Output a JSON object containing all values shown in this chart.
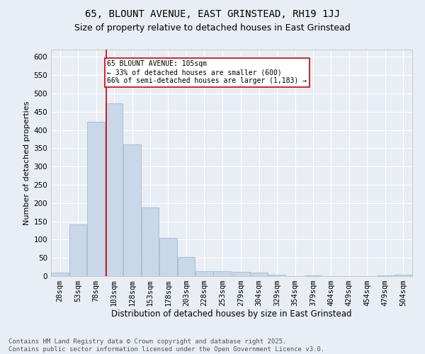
{
  "title1": "65, BLOUNT AVENUE, EAST GRINSTEAD, RH19 1JJ",
  "title2": "Size of property relative to detached houses in East Grinstead",
  "xlabel": "Distribution of detached houses by size in East Grinstead",
  "ylabel": "Number of detached properties",
  "bar_color": "#c8d8e8",
  "bar_edge_color": "#9ab4cc",
  "background_color": "#e8eef4",
  "grid_color": "#ffffff",
  "vline_x": 105,
  "vline_color": "#cc0000",
  "annotation_text": "65 BLOUNT AVENUE: 105sqm\n← 33% of detached houses are smaller (600)\n66% of semi-detached houses are larger (1,183) →",
  "annotation_box_color": "#ffffff",
  "annotation_box_edge": "#cc0000",
  "bin_edges": [
    28,
    53,
    78,
    103,
    128,
    153,
    178,
    203,
    228,
    253,
    279,
    304,
    329,
    354,
    379,
    404,
    429,
    454,
    479,
    504,
    529
  ],
  "bar_heights": [
    10,
    142,
    422,
    473,
    360,
    188,
    105,
    53,
    14,
    13,
    11,
    9,
    4,
    0,
    2,
    0,
    0,
    0,
    2,
    4
  ],
  "ylim": [
    0,
    620
  ],
  "yticks": [
    0,
    50,
    100,
    150,
    200,
    250,
    300,
    350,
    400,
    450,
    500,
    550,
    600
  ],
  "footer_text": "Contains HM Land Registry data © Crown copyright and database right 2025.\nContains public sector information licensed under the Open Government Licence v3.0.",
  "title1_fontsize": 10,
  "title2_fontsize": 9,
  "xlabel_fontsize": 8.5,
  "ylabel_fontsize": 8,
  "tick_fontsize": 7.5,
  "footer_fontsize": 6.5
}
